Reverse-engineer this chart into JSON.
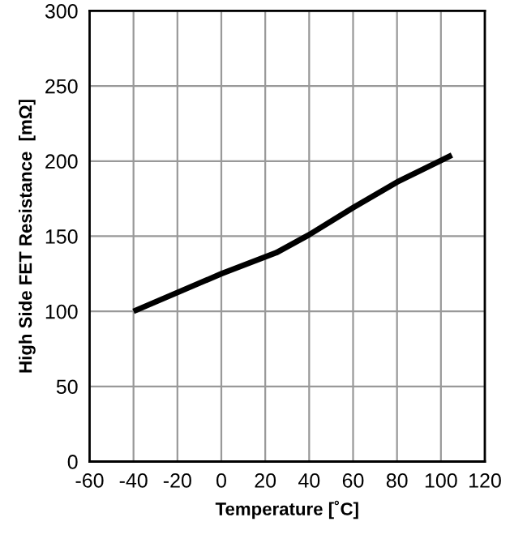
{
  "chart_data": {
    "type": "line",
    "xlabel": "Temperature [˚C]",
    "ylabel": "High Side FET Resistance  [mΩ]",
    "series": [
      {
        "color": "#000000",
        "x": [
          -40,
          0,
          25,
          40,
          60,
          80,
          105
        ],
        "values": [
          100,
          125,
          139,
          151,
          169,
          186,
          204
        ]
      }
    ],
    "xlim": [
      -60,
      120
    ],
    "xticks": [
      -60,
      -40,
      -20,
      0,
      20,
      40,
      60,
      80,
      100,
      120
    ],
    "ylim": [
      0,
      300
    ],
    "yticks": [
      0,
      50,
      100,
      150,
      200,
      250,
      300
    ],
    "grid": true,
    "marker": "none",
    "line_style": "solid"
  }
}
